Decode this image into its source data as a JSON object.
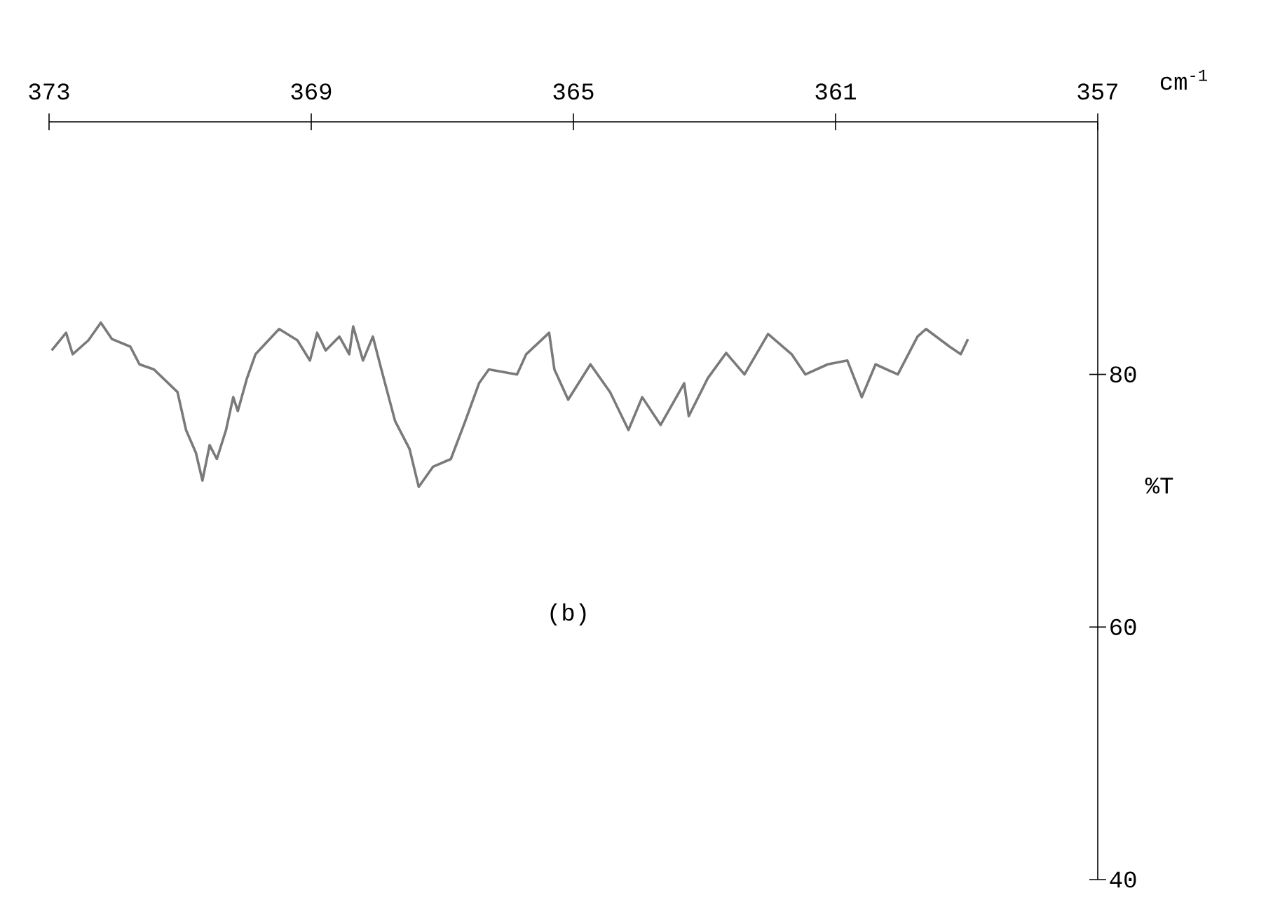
{
  "chart_data": {
    "type": "line",
    "xlabel": "cm$^{-1}$",
    "ylabel": "%T",
    "annotations": [
      "(b)"
    ],
    "xlim": [
      373,
      357
    ],
    "ylim": [
      40,
      100
    ],
    "xticks": [
      373,
      369,
      365,
      361,
      357
    ],
    "yticks": [
      40,
      60,
      80
    ],
    "series": [
      {
        "color": "#7a7a7a",
        "x": [
          372.96,
          372.74,
          372.64,
          372.4,
          372.21,
          372.04,
          371.76,
          371.62,
          371.4,
          371.04,
          370.91,
          370.76,
          370.66,
          370.55,
          370.44,
          370.3,
          370.19,
          370.12,
          369.98,
          369.85,
          369.49,
          369.21,
          369.02,
          368.91,
          368.78,
          368.57,
          368.42,
          368.36,
          368.21,
          368.06,
          367.93,
          367.72,
          367.5,
          367.36,
          367.14,
          366.87,
          366.65,
          366.44,
          366.29,
          365.86,
          365.72,
          365.37,
          365.29,
          365.08,
          364.74,
          364.44,
          364.16,
          363.95,
          363.67,
          363.31,
          363.24,
          362.95,
          362.67,
          362.39,
          362.03,
          361.67,
          361.46,
          361.12,
          360.82,
          360.6,
          360.39,
          360.05,
          359.75,
          359.62,
          359.26,
          359.09,
          358.98
        ],
        "values": [
          81.9,
          83.3,
          81.6,
          82.7,
          84.1,
          82.8,
          82.2,
          80.8,
          80.4,
          78.6,
          75.6,
          73.8,
          71.6,
          74.4,
          73.3,
          75.6,
          78.2,
          77.1,
          79.7,
          81.6,
          83.6,
          82.7,
          81.1,
          83.3,
          81.9,
          83.0,
          81.6,
          83.8,
          81.1,
          83.0,
          80.4,
          76.3,
          74.1,
          71.1,
          72.7,
          73.3,
          76.3,
          79.3,
          80.4,
          80.0,
          81.6,
          83.3,
          80.4,
          78.0,
          80.8,
          78.6,
          75.6,
          78.2,
          76.0,
          79.3,
          76.7,
          79.7,
          81.7,
          80.0,
          83.2,
          81.6,
          80.0,
          80.8,
          81.1,
          78.2,
          80.8,
          80.0,
          83.0,
          83.6,
          82.2,
          81.6,
          82.8
        ]
      }
    ]
  }
}
